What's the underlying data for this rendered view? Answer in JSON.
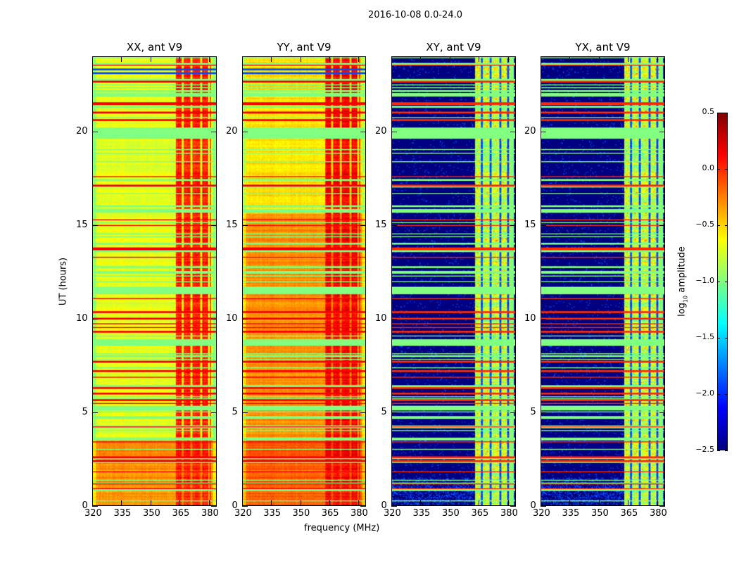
{
  "chart_data": {
    "type": "heatmap",
    "title": "2016-10-08 0.0-24.0",
    "ylabel": "UT (hours)",
    "xlabel": "frequency (MHz)",
    "xlim": [
      320,
      384
    ],
    "ylim": [
      0,
      24
    ],
    "xticks": [
      320,
      335,
      350,
      365,
      380
    ],
    "yticks": [
      0,
      5,
      10,
      15,
      20
    ],
    "colorbar": {
      "label_prefix": "log",
      "label_sub": "10",
      "label_suffix": " amplitude",
      "range": [
        -2.5,
        0.5
      ],
      "ticks": [
        "0.5",
        "0.0",
        "−0.5",
        "−1.0",
        "−1.5",
        "−2.0",
        "−2.5"
      ],
      "tick_values": [
        0.5,
        0.0,
        -0.5,
        -1.0,
        -1.5,
        -2.0,
        -2.5
      ],
      "colormap": "jet"
    },
    "panels": [
      {
        "title": "XX, ant V9",
        "kind": "auto",
        "base_level": -0.7,
        "band_level": 0.05
      },
      {
        "title": "YY, ant V9",
        "kind": "auto_yy",
        "base_level": -0.45,
        "band_level": 0.15
      },
      {
        "title": "XY, ant V9",
        "kind": "cross",
        "base_level": -2.5,
        "band_level": -0.8
      },
      {
        "title": "YX, ant V9",
        "kind": "cross",
        "base_level": -2.5,
        "band_level": -0.8
      }
    ],
    "rfi_band_mhz": [
      363,
      381
    ],
    "flagged_time_ranges_hours": [
      [
        19.6,
        20.2
      ],
      [
        11.3,
        11.7
      ],
      [
        15.65,
        15.85
      ],
      [
        8.6,
        8.9
      ],
      [
        5.1,
        5.35
      ],
      [
        12.4,
        12.55
      ],
      [
        3.5,
        3.65
      ]
    ],
    "bright_time_lines_hours": [
      22.65,
      21.5,
      21.0,
      20.6,
      17.1,
      13.7,
      10.35,
      10.0,
      9.3,
      7.7,
      7.2,
      6.3,
      6.0,
      5.7,
      2.6,
      2.4,
      1.2,
      0.9
    ],
    "dark_time_lines_hours": [
      23.1,
      23.3
    ]
  }
}
